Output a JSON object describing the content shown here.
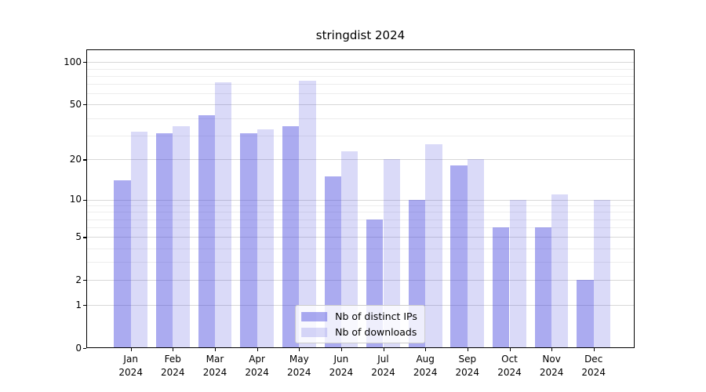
{
  "title": "stringdist 2024",
  "chart_data": {
    "type": "bar",
    "title": "stringdist 2024",
    "x_labels": [
      [
        "Jan",
        "2024"
      ],
      [
        "Feb",
        "2024"
      ],
      [
        "Mar",
        "2024"
      ],
      [
        "Apr",
        "2024"
      ],
      [
        "May",
        "2024"
      ],
      [
        "Jun",
        "2024"
      ],
      [
        "Jul",
        "2024"
      ],
      [
        "Aug",
        "2024"
      ],
      [
        "Sep",
        "2024"
      ],
      [
        "Oct",
        "2024"
      ],
      [
        "Nov",
        "2024"
      ],
      [
        "Dec",
        "2024"
      ]
    ],
    "series": [
      {
        "name": "Nb of distinct IPs",
        "color": "rgba(68,68,221,0.45)",
        "rendered_hex": "#a7a7f0",
        "values": [
          14,
          31,
          42,
          31,
          35,
          15,
          7,
          10,
          18,
          6,
          6,
          2
        ]
      },
      {
        "name": "Nb of downloads",
        "color": "rgba(68,68,221,0.2)",
        "rendered_hex": "#d9d9f8",
        "values": [
          32,
          35,
          72,
          33,
          74,
          23,
          20,
          26,
          20,
          10,
          11,
          10
        ]
      }
    ],
    "y_axis": {
      "scale": "log10(value+1)",
      "ticks": [
        100,
        50,
        20,
        10,
        5,
        2,
        1,
        0
      ],
      "tick_labels": [
        "100",
        "50",
        "20",
        "10",
        "5",
        "2",
        "1",
        "0"
      ],
      "minor_ticks": [
        3,
        4,
        6,
        7,
        8,
        9,
        30,
        40,
        60,
        70,
        80,
        90
      ],
      "ylim": [
        0,
        123
      ]
    },
    "grid": true,
    "legend_position": "lower center",
    "colors": {
      "grid_major": "#d8d8d8",
      "grid_minor": "#ededed",
      "spine": "#000000",
      "background": "#ffffff"
    }
  }
}
